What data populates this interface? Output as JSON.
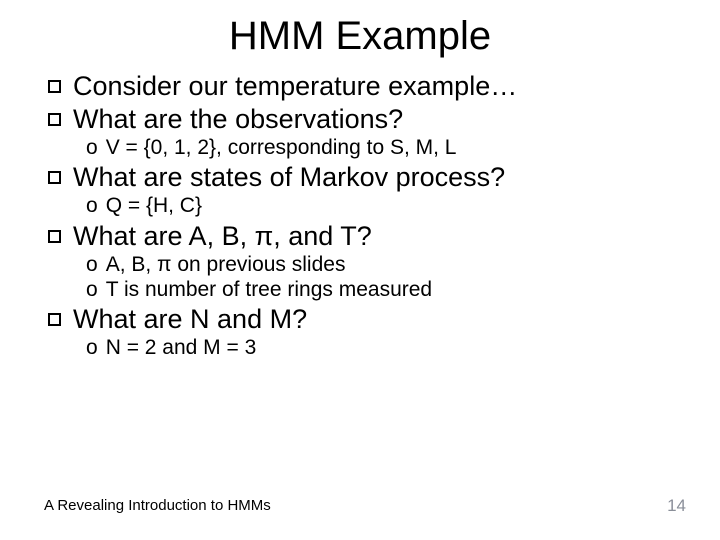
{
  "title": "HMM Example",
  "title_fontsize": 40,
  "l1_fontsize": 27,
  "l2_fontsize": 21,
  "footer_fontsize": 15,
  "pagenum_fontsize": 17,
  "text_color": "#000000",
  "pagenum_color": "#8a8f99",
  "background_color": "#ffffff",
  "items": {
    "p1": "Consider our temperature example…",
    "p2": "What are the observations?",
    "p2a": "V = {0, 1, 2}, corresponding to S, M, L",
    "p3": "What are states of Markov process?",
    "p3a": "Q = {H, C}",
    "p4": "What are A, B, π, and T?",
    "p4a": "A, B, π on previous slides",
    "p4b": "T is number of tree rings measured",
    "p5": "What are N and M?",
    "p5a": "N = 2 and M = 3"
  },
  "footer": "A Revealing Introduction to HMMs",
  "page_number": "14"
}
